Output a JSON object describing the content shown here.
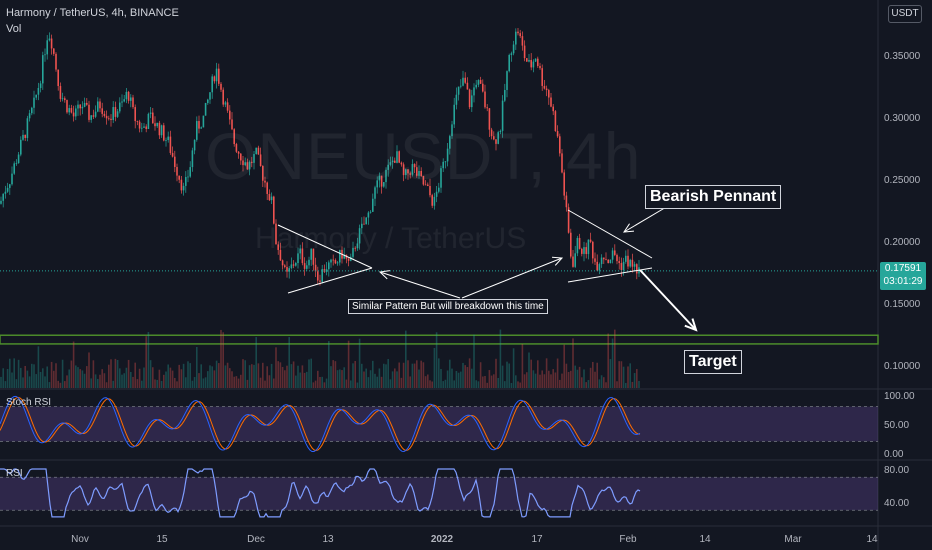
{
  "header": {
    "title": "Harmony / TetherUS, 4h, BINANCE",
    "volume_label": "Vol",
    "currency": "USDT"
  },
  "watermark": {
    "symbol": "ONEUSDT, 4h",
    "name": "Harmony / TetherUS"
  },
  "annotations": {
    "bearish_pennant": "Bearish Pennant",
    "target": "Target",
    "similar_pattern": "Similar Pattern But will breakdown this time"
  },
  "price_badge": {
    "price": "0.17591",
    "countdown": "03:01:29"
  },
  "panels": {
    "stoch_rsi_label": "Stoch RSI",
    "rsi_label": "RSI"
  },
  "colors": {
    "up": "#26a69a",
    "down": "#ef5350",
    "stoch_k": "#2962ff",
    "stoch_d": "#ff6d00",
    "rsi": "#7e9cff",
    "band": "#7e57c2",
    "target_zone": "#4c8c2b"
  },
  "chart_data": {
    "type": "candlestick",
    "title": "Harmony / TetherUS, 4h, BINANCE",
    "price_axis": {
      "ticks": [
        0.35,
        0.3,
        0.25,
        0.2,
        0.15,
        0.1
      ],
      "tick_labels": [
        "0.35000",
        "0.30000",
        "0.25000",
        "0.20000",
        "0.15000",
        "0.10000"
      ],
      "range": [
        0.083,
        0.385
      ]
    },
    "time_axis": {
      "labels": [
        "Nov",
        "15",
        "Dec",
        "13",
        "2022",
        "17",
        "Feb",
        "14",
        "Mar",
        "14"
      ]
    },
    "last_price": 0.17591,
    "target_zone": [
      0.117,
      0.124
    ],
    "price_path": [
      [
        0,
        0.23
      ],
      [
        4,
        0.24
      ],
      [
        10,
        0.25
      ],
      [
        18,
        0.27
      ],
      [
        26,
        0.29
      ],
      [
        34,
        0.31
      ],
      [
        40,
        0.33
      ],
      [
        44,
        0.35
      ],
      [
        48,
        0.37
      ],
      [
        52,
        0.36
      ],
      [
        56,
        0.34
      ],
      [
        60,
        0.32
      ],
      [
        66,
        0.31
      ],
      [
        74,
        0.3
      ],
      [
        82,
        0.31
      ],
      [
        90,
        0.3
      ],
      [
        100,
        0.31
      ],
      [
        110,
        0.3
      ],
      [
        122,
        0.31
      ],
      [
        128,
        0.32
      ],
      [
        134,
        0.3
      ],
      [
        142,
        0.29
      ],
      [
        150,
        0.3
      ],
      [
        160,
        0.29
      ],
      [
        168,
        0.28
      ],
      [
        176,
        0.26
      ],
      [
        184,
        0.24
      ],
      [
        190,
        0.26
      ],
      [
        196,
        0.29
      ],
      [
        204,
        0.3
      ],
      [
        210,
        0.32
      ],
      [
        216,
        0.34
      ],
      [
        222,
        0.32
      ],
      [
        228,
        0.3
      ],
      [
        234,
        0.28
      ],
      [
        240,
        0.27
      ],
      [
        248,
        0.26
      ],
      [
        256,
        0.27
      ],
      [
        264,
        0.25
      ],
      [
        272,
        0.23
      ],
      [
        276,
        0.2
      ],
      [
        280,
        0.19
      ],
      [
        286,
        0.17
      ],
      [
        292,
        0.18
      ],
      [
        300,
        0.19
      ],
      [
        306,
        0.18
      ],
      [
        312,
        0.19
      ],
      [
        318,
        0.17
      ],
      [
        326,
        0.18
      ],
      [
        334,
        0.18
      ],
      [
        342,
        0.19
      ],
      [
        350,
        0.18
      ],
      [
        356,
        0.2
      ],
      [
        362,
        0.21
      ],
      [
        368,
        0.22
      ],
      [
        374,
        0.24
      ],
      [
        382,
        0.25
      ],
      [
        390,
        0.26
      ],
      [
        396,
        0.27
      ],
      [
        404,
        0.25
      ],
      [
        412,
        0.26
      ],
      [
        420,
        0.25
      ],
      [
        428,
        0.24
      ],
      [
        434,
        0.23
      ],
      [
        440,
        0.25
      ],
      [
        446,
        0.27
      ],
      [
        452,
        0.3
      ],
      [
        458,
        0.32
      ],
      [
        464,
        0.33
      ],
      [
        470,
        0.31
      ],
      [
        476,
        0.33
      ],
      [
        482,
        0.32
      ],
      [
        488,
        0.3
      ],
      [
        494,
        0.28
      ],
      [
        500,
        0.29
      ],
      [
        506,
        0.33
      ],
      [
        512,
        0.36
      ],
      [
        518,
        0.37
      ],
      [
        524,
        0.35
      ],
      [
        530,
        0.34
      ],
      [
        536,
        0.35
      ],
      [
        542,
        0.33
      ],
      [
        548,
        0.32
      ],
      [
        554,
        0.3
      ],
      [
        560,
        0.27
      ],
      [
        564,
        0.24
      ],
      [
        568,
        0.21
      ],
      [
        572,
        0.18
      ],
      [
        578,
        0.2
      ],
      [
        584,
        0.19
      ],
      [
        590,
        0.2
      ],
      [
        596,
        0.18
      ],
      [
        602,
        0.19
      ],
      [
        608,
        0.185
      ],
      [
        614,
        0.19
      ],
      [
        620,
        0.18
      ],
      [
        626,
        0.185
      ],
      [
        632,
        0.18
      ],
      [
        638,
        0.176
      ]
    ],
    "stoch_rsi": {
      "ticks": [
        100,
        50,
        0
      ],
      "tick_labels": [
        "100.00",
        "50.00",
        "0.00"
      ],
      "band": [
        20,
        80
      ]
    },
    "rsi": {
      "ticks": [
        80,
        40
      ],
      "tick_labels": [
        "80.00",
        "40.00"
      ],
      "band": [
        30,
        70
      ]
    }
  }
}
